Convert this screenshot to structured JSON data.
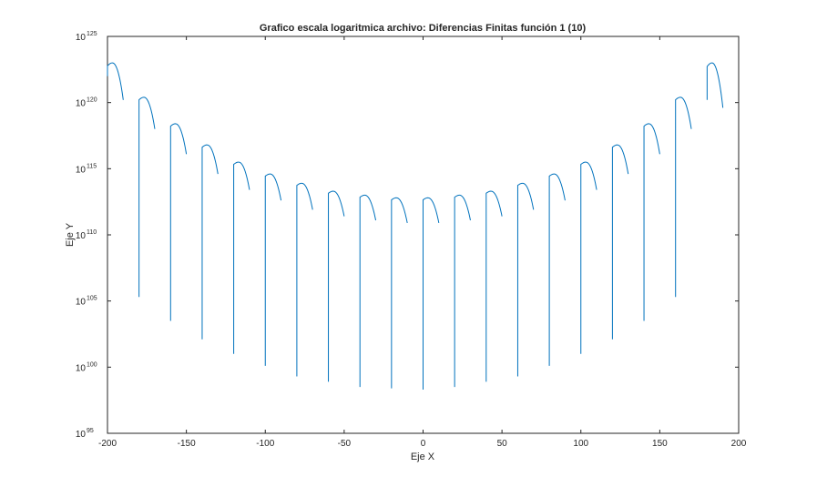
{
  "chart_data": {
    "type": "line",
    "title": "Grafico escala logaritmica archivo: Diferencias Finitas función 1 (10)",
    "xlabel": "Eje X",
    "ylabel": "Eje Y",
    "xlim": [
      -200,
      200
    ],
    "ylim_log10": [
      95,
      125
    ],
    "yscale": "log",
    "grid": false,
    "line_color": "#0072BD",
    "x_ticks": [
      -200,
      -150,
      -100,
      -50,
      0,
      50,
      100,
      150,
      200
    ],
    "x_tick_labels": [
      "-200",
      "-150",
      "-100",
      "-50",
      "0",
      "50",
      "100",
      "150",
      "200"
    ],
    "y_ticks_log10": [
      95,
      100,
      105,
      110,
      115,
      120,
      125
    ],
    "y_tick_base": "10",
    "y_tick_exponents": [
      "95",
      "100",
      "105",
      "110",
      "115",
      "120",
      "125"
    ],
    "series": [
      {
        "segments_log10": [
          {
            "x0": -200,
            "x1": -190,
            "y_start": 122.0,
            "y_peak": 123.0,
            "y_end": 120.2
          },
          {
            "x0": -180,
            "x1": -170,
            "y_start": 105.3,
            "y_peak": 120.4,
            "y_end": 118.0
          },
          {
            "x0": -160,
            "x1": -150,
            "y_start": 103.5,
            "y_peak": 118.4,
            "y_end": 116.1
          },
          {
            "x0": -140,
            "x1": -130,
            "y_start": 102.1,
            "y_peak": 116.8,
            "y_end": 114.6
          },
          {
            "x0": -120,
            "x1": -110,
            "y_start": 101.0,
            "y_peak": 115.5,
            "y_end": 113.4
          },
          {
            "x0": -100,
            "x1": -90,
            "y_start": 100.1,
            "y_peak": 114.6,
            "y_end": 112.6
          },
          {
            "x0": -80,
            "x1": -70,
            "y_start": 99.3,
            "y_peak": 113.9,
            "y_end": 111.9
          },
          {
            "x0": -60,
            "x1": -50,
            "y_start": 98.9,
            "y_peak": 113.3,
            "y_end": 111.4
          },
          {
            "x0": -40,
            "x1": -30,
            "y_start": 98.5,
            "y_peak": 113.0,
            "y_end": 111.1
          },
          {
            "x0": -20,
            "x1": -10,
            "y_start": 98.4,
            "y_peak": 112.8,
            "y_end": 110.9
          },
          {
            "x0": 0,
            "x1": 10,
            "y_start": 98.3,
            "y_peak": 112.8,
            "y_end": 110.9
          },
          {
            "x0": 20,
            "x1": 30,
            "y_start": 98.5,
            "y_peak": 113.0,
            "y_end": 111.1
          },
          {
            "x0": 40,
            "x1": 50,
            "y_start": 98.9,
            "y_peak": 113.3,
            "y_end": 111.4
          },
          {
            "x0": 60,
            "x1": 70,
            "y_start": 99.3,
            "y_peak": 113.9,
            "y_end": 111.9
          },
          {
            "x0": 80,
            "x1": 90,
            "y_start": 100.1,
            "y_peak": 114.6,
            "y_end": 112.6
          },
          {
            "x0": 100,
            "x1": 110,
            "y_start": 101.0,
            "y_peak": 115.5,
            "y_end": 113.4
          },
          {
            "x0": 120,
            "x1": 130,
            "y_start": 102.1,
            "y_peak": 116.8,
            "y_end": 114.6
          },
          {
            "x0": 140,
            "x1": 150,
            "y_start": 103.5,
            "y_peak": 118.4,
            "y_end": 116.1
          },
          {
            "x0": 160,
            "x1": 170,
            "y_start": 105.3,
            "y_peak": 120.4,
            "y_end": 118.0
          },
          {
            "x0": 180,
            "x1": 190,
            "y_start": 120.2,
            "y_peak": 123.0,
            "y_end": 119.6
          }
        ]
      }
    ]
  }
}
